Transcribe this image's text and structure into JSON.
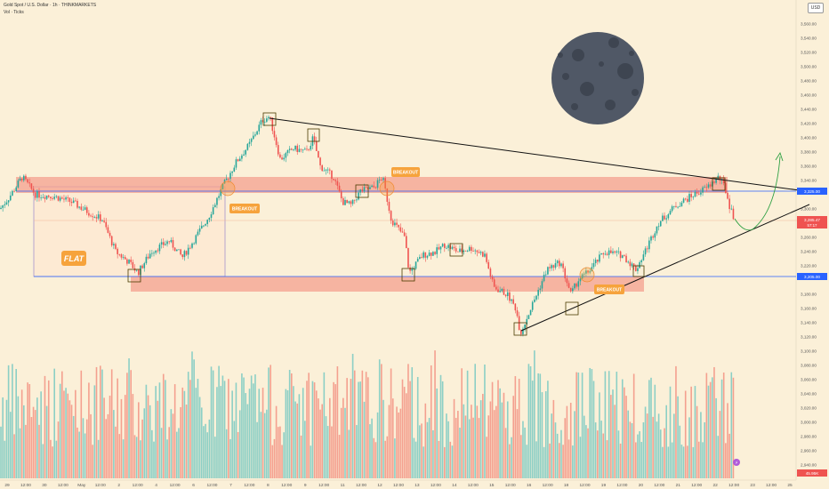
{
  "header": {
    "symbol_line": "Gold Spot / U.S. Dollar · 1h · THINKMARKETS",
    "volume_line": "Vol · Ticks",
    "currency": "USD"
  },
  "colors": {
    "background": "#fbf0d8",
    "up": "#26a69a",
    "down": "#ef5350",
    "volume_up": "#8ccfc5",
    "volume_down": "#f4a08f",
    "zone_fill": "#f4a08f",
    "accent_label": "#f6a33c",
    "price_line": "#2962ff"
  },
  "chart_data": {
    "type": "candlestick",
    "symbol": "Gold Spot / U.S. Dollar",
    "timeframe": "1h",
    "price_axis_ticks": [
      "3,560.00",
      "3,540.00",
      "3,520.00",
      "3,500.00",
      "3,480.00",
      "3,460.00",
      "3,440.00",
      "3,420.00",
      "3,400.00",
      "3,380.00",
      "3,360.00",
      "3,340.00",
      "3,300.00",
      "3,280.00",
      "3,260.00",
      "3,240.00",
      "3,220.00",
      "3,180.00",
      "3,160.00",
      "3,140.00",
      "3,120.00",
      "3,100.00",
      "3,080.00",
      "3,060.00",
      "3,040.00",
      "3,020.00",
      "3,000.00",
      "2,980.00",
      "2,960.00",
      "2,940.00"
    ],
    "ylim": [
      2930,
      3570
    ],
    "time_axis_labels": [
      "29",
      "12:00",
      "30",
      "12:00",
      "May",
      "12:00",
      "2",
      "12:00",
      "4",
      "12:00",
      "6",
      "12:00",
      "7",
      "12:00",
      "8",
      "12:00",
      "9",
      "12:00",
      "11",
      "12:00",
      "12",
      "12:00",
      "13",
      "12:00",
      "14",
      "12:00",
      "15",
      "12:00",
      "16",
      "12:00",
      "18",
      "12:00",
      "19",
      "12:00",
      "20",
      "12:00",
      "21",
      "12:00",
      "22",
      "12:00",
      "23",
      "12:00",
      "25"
    ],
    "price_waypoints": [
      [
        0,
        3300
      ],
      [
        10,
        3316
      ],
      [
        25,
        3345
      ],
      [
        40,
        3320
      ],
      [
        60,
        3318
      ],
      [
        80,
        3310
      ],
      [
        100,
        3295
      ],
      [
        115,
        3285
      ],
      [
        130,
        3240
      ],
      [
        145,
        3225
      ],
      [
        155,
        3210
      ],
      [
        170,
        3240
      ],
      [
        190,
        3255
      ],
      [
        205,
        3232
      ],
      [
        220,
        3260
      ],
      [
        235,
        3290
      ],
      [
        250,
        3330
      ],
      [
        265,
        3365
      ],
      [
        280,
        3390
      ],
      [
        295,
        3425
      ],
      [
        303,
        3430
      ],
      [
        315,
        3370
      ],
      [
        330,
        3385
      ],
      [
        345,
        3380
      ],
      [
        352,
        3400
      ],
      [
        360,
        3360
      ],
      [
        375,
        3345
      ],
      [
        385,
        3310
      ],
      [
        395,
        3305
      ],
      [
        405,
        3325
      ],
      [
        420,
        3330
      ],
      [
        430,
        3345
      ],
      [
        440,
        3285
      ],
      [
        455,
        3260
      ],
      [
        460,
        3210
      ],
      [
        475,
        3235
      ],
      [
        490,
        3240
      ],
      [
        500,
        3250
      ],
      [
        515,
        3240
      ],
      [
        530,
        3245
      ],
      [
        545,
        3235
      ],
      [
        555,
        3190
      ],
      [
        570,
        3180
      ],
      [
        580,
        3160
      ],
      [
        585,
        3125
      ],
      [
        600,
        3170
      ],
      [
        615,
        3215
      ],
      [
        630,
        3225
      ],
      [
        642,
        3180
      ],
      [
        650,
        3200
      ],
      [
        660,
        3210
      ],
      [
        680,
        3240
      ],
      [
        700,
        3235
      ],
      [
        715,
        3215
      ],
      [
        725,
        3240
      ],
      [
        740,
        3280
      ],
      [
        760,
        3305
      ],
      [
        780,
        3320
      ],
      [
        795,
        3330
      ],
      [
        808,
        3345
      ],
      [
        815,
        3330
      ],
      [
        820,
        3305
      ],
      [
        826,
        3285
      ],
      [
        828,
        3290
      ]
    ],
    "last_price": "3,285.47",
    "last_price_sub": "57:17",
    "horizontal_levels": [
      {
        "price": 3325,
        "label": "3,325.00"
      },
      {
        "price": 3205,
        "label": "3,205.00"
      }
    ],
    "volume_scale_label": "45.95K",
    "annotations": {
      "flat_label": "FLAT",
      "breakout_labels": [
        "BREAKOUT",
        "BREAKOUT",
        "BREAKOUT"
      ]
    }
  }
}
